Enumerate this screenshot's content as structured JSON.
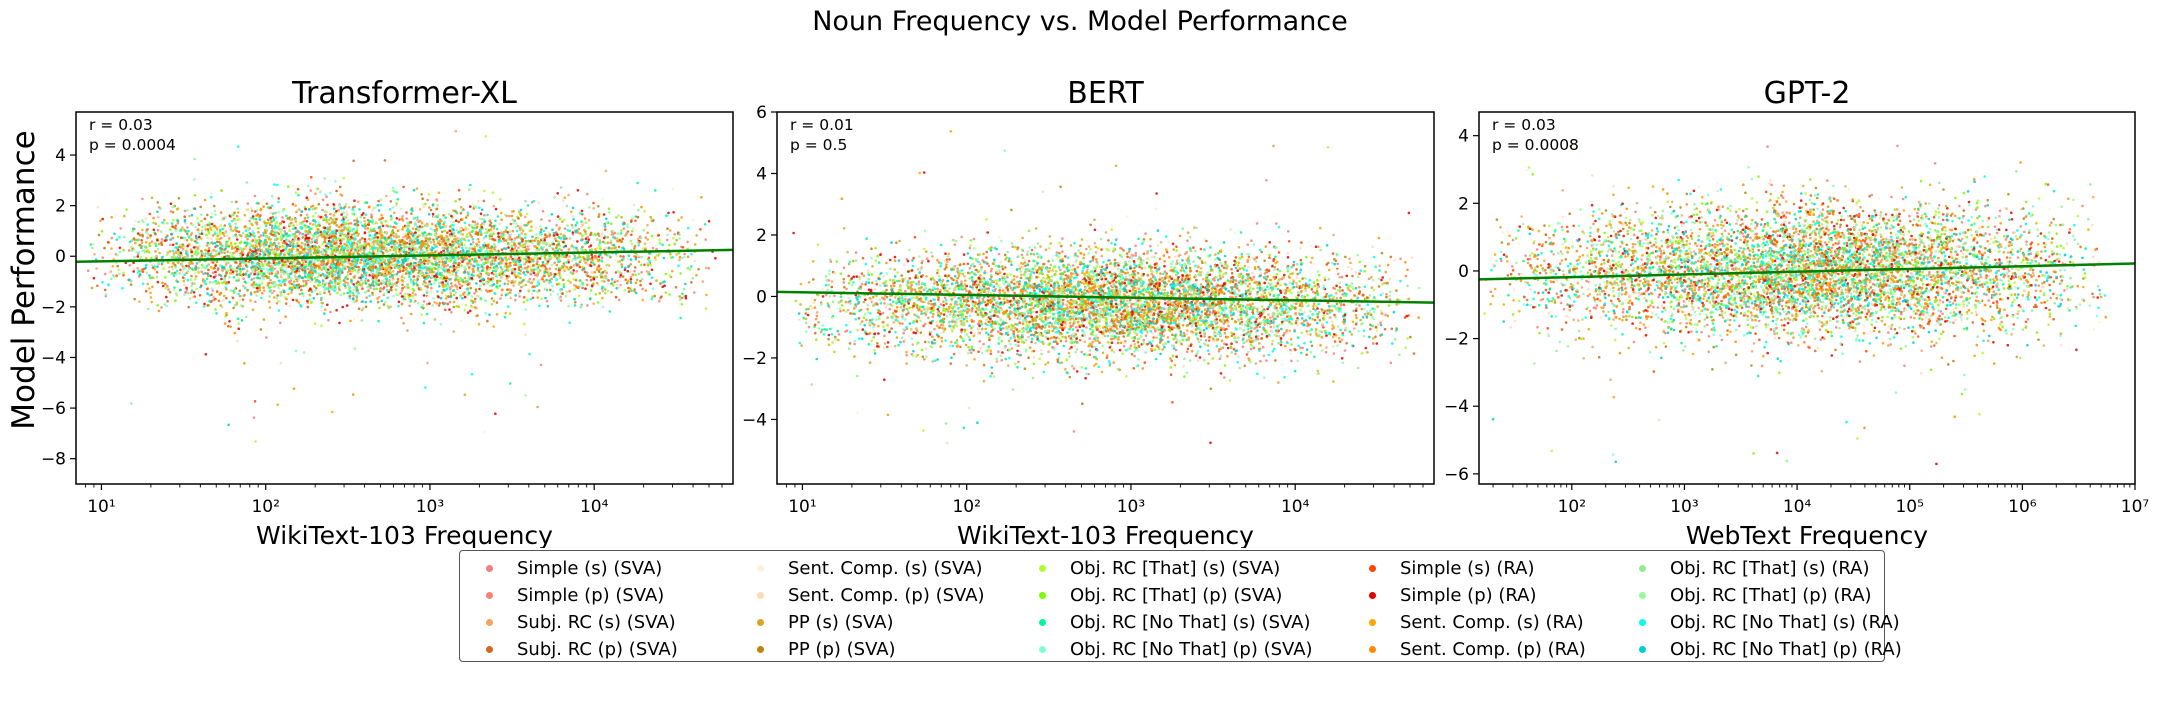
{
  "figure": {
    "suptitle": "Noun Frequency vs. Model Performance",
    "ylabel": "Model Performance"
  },
  "legend": [
    {
      "label": "Simple (s) (SVA)",
      "color": "#f08080"
    },
    {
      "label": "Simple (p) (SVA)",
      "color": "#fa8072"
    },
    {
      "label": "Subj. RC (s) (SVA)",
      "color": "#f4a460"
    },
    {
      "label": "Subj. RC (p) (SVA)",
      "color": "#d2691e"
    },
    {
      "label": "Sent. Comp. (s) (SVA)",
      "color": "#fff0d5"
    },
    {
      "label": "Sent. Comp. (p) (SVA)",
      "color": "#ffdab9"
    },
    {
      "label": "PP (s) (SVA)",
      "color": "#daa520"
    },
    {
      "label": "PP (p) (SVA)",
      "color": "#b8860b"
    },
    {
      "label": "Obj. RC [That] (s) (SVA)",
      "color": "#adff2f"
    },
    {
      "label": "Obj. RC [That] (p) (SVA)",
      "color": "#7cfc00"
    },
    {
      "label": "Obj. RC [No That] (s) (SVA)",
      "color": "#00fa9a"
    },
    {
      "label": "Obj. RC [No That] (p) (SVA)",
      "color": "#7fffd4"
    },
    {
      "label": "Simple (s) (RA)",
      "color": "#ff4500"
    },
    {
      "label": "Simple (p) (RA)",
      "color": "#e00000"
    },
    {
      "label": "Sent. Comp. (s) (RA)",
      "color": "#ffa500"
    },
    {
      "label": "Sent. Comp. (p) (RA)",
      "color": "#ff8c00"
    },
    {
      "label": "Obj. RC [That] (s) (RA)",
      "color": "#90ee90"
    },
    {
      "label": "Obj. RC [That] (p) (RA)",
      "color": "#98fb98"
    },
    {
      "label": "Obj. RC [No That] (s) (RA)",
      "color": "#00ffee"
    },
    {
      "label": "Obj. RC [No That] (p) (RA)",
      "color": "#00ced1"
    }
  ],
  "chart_data": [
    {
      "type": "scatter",
      "title": "Transformer-XL",
      "xlabel": "WikiText-103 Frequency",
      "xscale": "log",
      "xlim": [
        7,
        70000
      ],
      "ylim": [
        -9,
        5.7
      ],
      "xticks": [
        10,
        100,
        1000,
        10000
      ],
      "xtick_labels": [
        "10¹",
        "10²",
        "10³",
        "10⁴"
      ],
      "yticks": [
        -8,
        -6,
        -4,
        -2,
        0,
        2,
        4
      ],
      "annotation": [
        "r = 0.03",
        "p = 0.0004"
      ],
      "regression": {
        "x": [
          7,
          70000
        ],
        "y": [
          -0.22,
          0.25
        ],
        "color": "#008000"
      },
      "point_cloud": {
        "x_range": [
          8,
          60000
        ],
        "x_mode": 300,
        "y_mean": 0.0,
        "y_sd": 0.95,
        "y_min": -8.2,
        "y_max": 5.0,
        "points_per_series": 320
      }
    },
    {
      "type": "scatter",
      "title": "BERT",
      "xlabel": "WikiText-103 Frequency",
      "xscale": "log",
      "xlim": [
        7,
        70000
      ],
      "ylim": [
        -6.1,
        6.0
      ],
      "xticks": [
        10,
        100,
        1000,
        10000
      ],
      "xtick_labels": [
        "10¹",
        "10²",
        "10³",
        "10⁴"
      ],
      "yticks": [
        -4,
        -2,
        0,
        2,
        4,
        6
      ],
      "annotation": [
        "r = 0.01",
        "p = 0.5"
      ],
      "regression": {
        "x": [
          7,
          70000
        ],
        "y": [
          0.15,
          -0.2
        ],
        "color": "#008000"
      },
      "point_cloud": {
        "x_range": [
          8,
          60000
        ],
        "x_mode": 800,
        "y_mean": -0.2,
        "y_sd": 0.85,
        "y_min": -4.8,
        "y_max": 5.5,
        "points_per_series": 320
      }
    },
    {
      "type": "scatter",
      "title": "GPT-2",
      "xlabel": "WebText Frequency",
      "xscale": "log",
      "xlim": [
        15,
        10000000
      ],
      "ylim": [
        -6.3,
        4.7
      ],
      "xticks": [
        100,
        1000,
        10000,
        100000,
        1000000,
        10000000
      ],
      "xtick_labels": [
        "10²",
        "10³",
        "10⁴",
        "10⁵",
        "10⁶",
        "10⁷"
      ],
      "yticks": [
        -6,
        -4,
        -2,
        0,
        2,
        4
      ],
      "annotation": [
        "r = 0.03",
        "p = 0.0008"
      ],
      "regression": {
        "x": [
          15,
          10000000
        ],
        "y": [
          -0.25,
          0.22
        ],
        "color": "#008000"
      },
      "point_cloud": {
        "x_range": [
          15,
          6000000
        ],
        "x_mode": 20000,
        "y_mean": 0.0,
        "y_sd": 0.95,
        "y_min": -5.8,
        "y_max": 4.2,
        "points_per_series": 320
      }
    }
  ]
}
